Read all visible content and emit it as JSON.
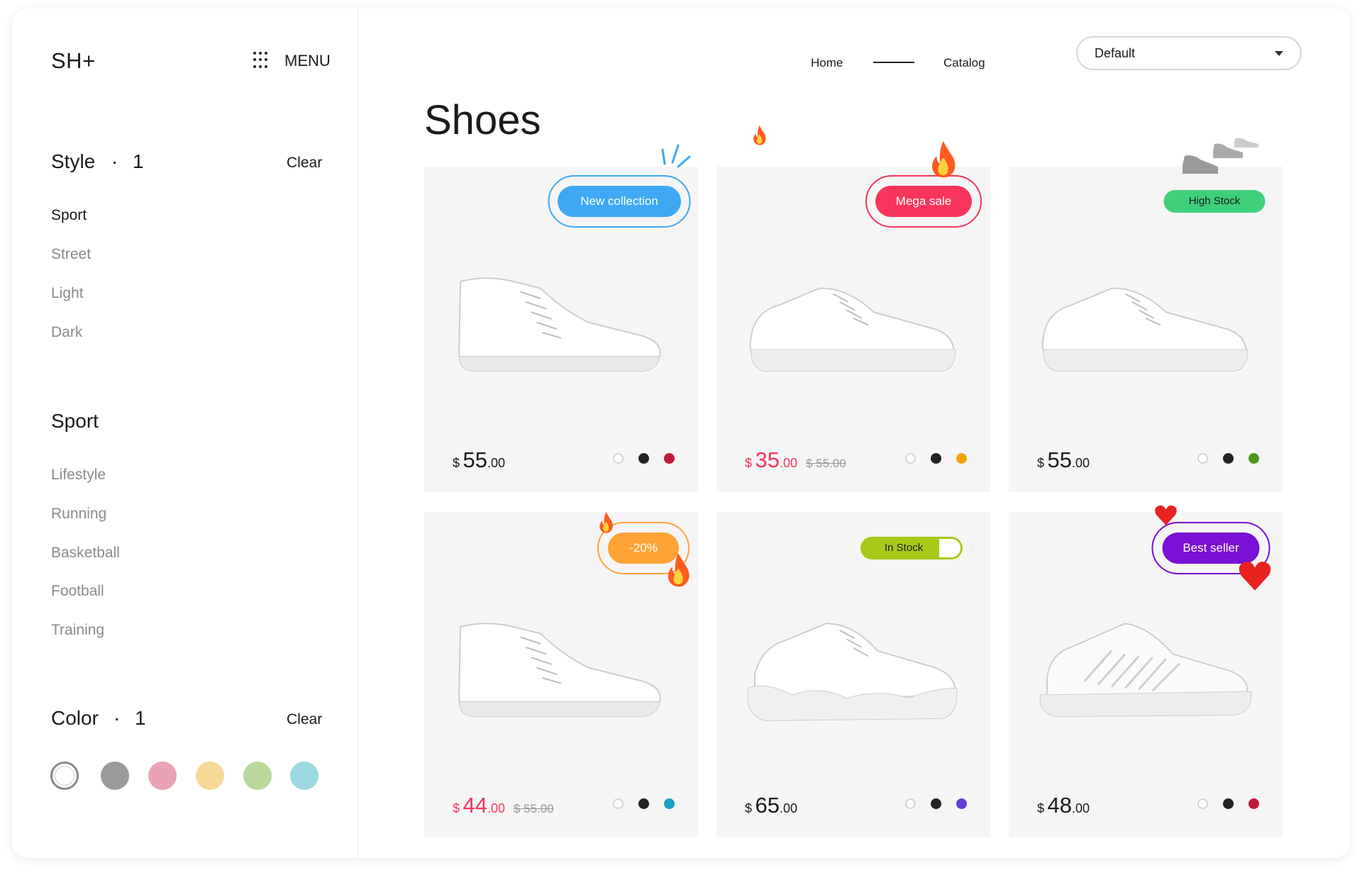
{
  "sidebar": {
    "logo": "SH+",
    "menu_label": "MENU",
    "style": {
      "title": "Style",
      "separator": "·",
      "count": "1",
      "clear": "Clear",
      "items": [
        "Sport",
        "Street",
        "Light",
        "Dark"
      ],
      "active": 0
    },
    "sport": {
      "title": "Sport",
      "items": [
        "Lifestyle",
        "Running",
        "Basketball",
        "Football",
        "Training"
      ]
    },
    "color": {
      "title": "Color",
      "separator": "·",
      "count": "1",
      "clear": "Clear",
      "swatches": [
        "#ffffff",
        "#9a9a9a",
        "#e8a4b4",
        "#f8d898",
        "#b8d89c",
        "#9cd8e0"
      ],
      "selected": 0
    }
  },
  "header": {
    "nav": [
      "Home",
      "Catalog"
    ],
    "sort": {
      "value": "Default"
    }
  },
  "main": {
    "title": "Shoes",
    "products": [
      {
        "badge": "New collection",
        "badge_color": "#3ea8f5",
        "currency": "$",
        "price": "55",
        "cents": ".00",
        "sale": false,
        "old_price": "",
        "colors": [
          "#ffffff",
          "#222222",
          "#c0193a"
        ],
        "style": "high"
      },
      {
        "badge": "Mega sale",
        "badge_color": "#f7355c",
        "currency": "$",
        "price": "35",
        "cents": ".00",
        "sale": true,
        "old_price": "$ 55.00",
        "colors": [
          "#ffffff",
          "#222222",
          "#f0a30a"
        ],
        "style": "low"
      },
      {
        "badge": "High Stock",
        "badge_color": "#3fd07a",
        "currency": "$",
        "price": "55",
        "cents": ".00",
        "sale": false,
        "old_price": "",
        "colors": [
          "#ffffff",
          "#222222",
          "#4a9a1a"
        ],
        "style": "low"
      },
      {
        "badge": "-20%",
        "badge_color": "#ffa336",
        "currency": "$",
        "price": "44",
        "cents": ".00",
        "sale": true,
        "old_price": "$ 55.00",
        "colors": [
          "#ffffff",
          "#222222",
          "#1aa0c0"
        ],
        "style": "high"
      },
      {
        "badge": "In Stock",
        "badge_color": "#a8c81a",
        "currency": "$",
        "price": "65",
        "cents": ".00",
        "sale": false,
        "old_price": "",
        "colors": [
          "#ffffff",
          "#222222",
          "#6040d0"
        ],
        "style": "chunky"
      },
      {
        "badge": "Best seller",
        "badge_color": "#7a10d4",
        "currency": "$",
        "price": "48",
        "cents": ".00",
        "sale": false,
        "old_price": "",
        "colors": [
          "#ffffff",
          "#222222",
          "#c0193a"
        ],
        "style": "run"
      }
    ]
  }
}
